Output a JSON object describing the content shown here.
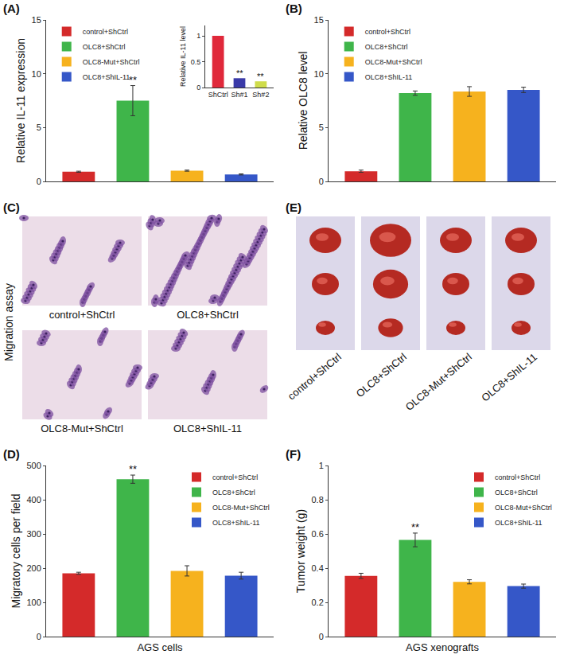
{
  "chart_data": [
    {
      "panel_label": "(A)",
      "type": "bar",
      "categories": [
        "control+ShCtrl",
        "OLC8+ShCtrl",
        "OLC8-Mut+ShCtrl",
        "OLC8+ShIL-11"
      ],
      "values": [
        0.9,
        7.5,
        1.0,
        0.65
      ],
      "errors": [
        0.05,
        1.4,
        0.05,
        0.05
      ],
      "colors": [
        "#d42a2a",
        "#3fb54a",
        "#f6b21e",
        "#3557c8"
      ],
      "y_label": "Relative IL-11 expression",
      "ylim": [
        0,
        15
      ],
      "yticks": [
        0,
        5,
        10,
        15
      ],
      "tick_labels": "y",
      "legend": "top-left",
      "annotations": [
        {
          "category": "OLC8+ShCtrl",
          "text": "**"
        }
      ],
      "inset": {
        "type": "bar",
        "categories": [
          "ShCtrl",
          "Sh#1",
          "Sh#2"
        ],
        "values": [
          1,
          0.18,
          0.12
        ],
        "colors": [
          "#e0283a",
          "#3a3aa8",
          "#cfdc4a"
        ],
        "y_label": "Relative IL-11 level",
        "ylim": [
          0,
          1.2
        ],
        "yticks": [
          0,
          0.5,
          1
        ],
        "annotations": [
          {
            "category": "Sh#1",
            "text": "**"
          },
          {
            "category": "Sh#2",
            "text": "**"
          }
        ]
      }
    },
    {
      "panel_label": "(B)",
      "type": "bar",
      "categories": [
        "control+ShCtrl",
        "OLC8+ShCtrl",
        "OLC8-Mut+ShCtrl",
        "OLC8+ShIL-11"
      ],
      "values": [
        0.95,
        8.2,
        8.35,
        8.5
      ],
      "errors": [
        0.1,
        0.2,
        0.45,
        0.25
      ],
      "colors": [
        "#d42a2a",
        "#3fb54a",
        "#f6b21e",
        "#3557c8"
      ],
      "y_label": "Relative OLC8 level",
      "ylim": [
        0,
        15
      ],
      "yticks": [
        0,
        5,
        10,
        15
      ],
      "tick_labels": "y",
      "legend": "top-left"
    },
    {
      "panel_label": "(D)",
      "type": "bar",
      "categories": [
        "control+ShCtrl",
        "OLC8+ShCtrl",
        "OLC8-Mut+ShCtrl",
        "OLC8+ShIL-11"
      ],
      "values": [
        185,
        460,
        192,
        178
      ],
      "errors": [
        3,
        12,
        15,
        10
      ],
      "colors": [
        "#d42a2a",
        "#3fb54a",
        "#f6b21e",
        "#3557c8"
      ],
      "y_label": "Migratory cells per field",
      "x_label": "AGS cells",
      "ylim": [
        0,
        500
      ],
      "yticks": [
        0,
        100,
        200,
        300,
        400,
        500
      ],
      "tick_labels": "y",
      "legend": "top-right",
      "annotations": [
        {
          "category": "OLC8+ShCtrl",
          "text": "**"
        }
      ]
    },
    {
      "panel_label": "(F)",
      "type": "bar",
      "categories": [
        "control+ShCtrl",
        "OLC8+ShCtrl",
        "OLC8-Mut+ShCtrl",
        "OLC8+ShIL-11"
      ],
      "values": [
        0.355,
        0.565,
        0.32,
        0.295
      ],
      "errors": [
        0.015,
        0.04,
        0.012,
        0.012
      ],
      "colors": [
        "#d42a2a",
        "#3fb54a",
        "#f6b21e",
        "#3557c8"
      ],
      "y_label": "Tumor weight (g)",
      "x_label": "AGS xenografts",
      "ylim": [
        0,
        1
      ],
      "yticks": [
        0,
        0.2,
        0.4,
        0.6,
        0.8,
        1
      ],
      "tick_labels": "y",
      "legend": "top-right",
      "annotations": [
        {
          "category": "OLC8+ShCtrl",
          "text": "**"
        }
      ]
    }
  ],
  "images": [
    {
      "panel_label": "(C)",
      "side_label": "Migration assay",
      "captions": [
        "control+ShCtrl",
        "OLC8+ShCtrl",
        "OLC8-Mut+ShCtrl",
        "OLC8+ShIL-11"
      ]
    },
    {
      "panel_label": "(E)",
      "captions": [
        "control+ShCtrl",
        "OLC8+ShCtrl",
        "OLC8-Mut+ShCtrl",
        "OLC8+ShIL-11"
      ]
    }
  ]
}
